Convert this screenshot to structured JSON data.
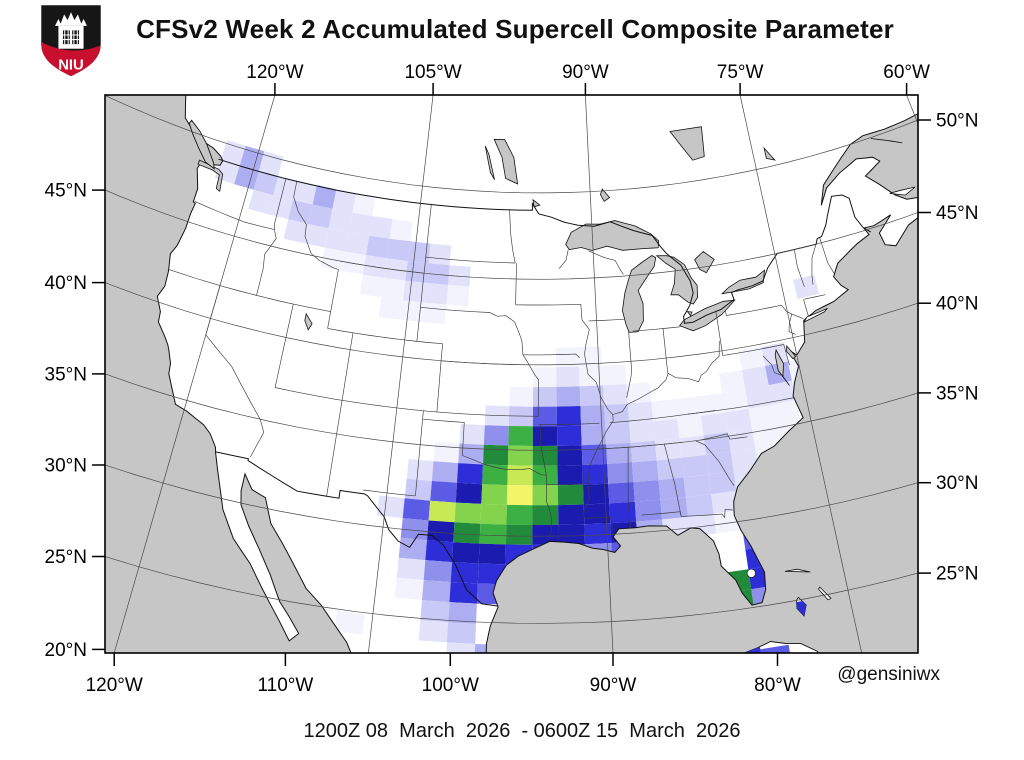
{
  "header": {
    "title": "CFSv2 Week 2 Accumulated Supercell Composite Parameter",
    "logo_text": "NIU"
  },
  "footer": {
    "caption": "1200Z 08  March  2026  - 0600Z 15  March  2026",
    "attribution": "@gensiniwx"
  },
  "axes": {
    "top": [
      {
        "lon": -120,
        "label": "120°W"
      },
      {
        "lon": -105,
        "label": "105°W"
      },
      {
        "lon": -90,
        "label": "90°W"
      },
      {
        "lon": -75,
        "label": "75°W"
      },
      {
        "lon": -60,
        "label": "60°W"
      }
    ],
    "bottom": [
      {
        "lon": -120,
        "label": "120°W"
      },
      {
        "lon": -110,
        "label": "110°W"
      },
      {
        "lon": -100,
        "label": "100°W"
      },
      {
        "lon": -90,
        "label": "90°W"
      },
      {
        "lon": -80,
        "label": "80°W"
      }
    ],
    "left": [
      {
        "lat": 45,
        "label": "45°N"
      },
      {
        "lat": 40,
        "label": "40°N"
      },
      {
        "lat": 35,
        "label": "35°N"
      },
      {
        "lat": 30,
        "label": "30°N"
      },
      {
        "lat": 25,
        "label": "25°N"
      },
      {
        "lat": 20,
        "label": "20°N"
      }
    ],
    "right": [
      {
        "lat": 50,
        "label": "50°N"
      },
      {
        "lat": 45,
        "label": "45°N"
      },
      {
        "lat": 40,
        "label": "40°N"
      },
      {
        "lat": 35,
        "label": "35°N"
      },
      {
        "lat": 30,
        "label": "30°N"
      },
      {
        "lat": 25,
        "label": "25°N"
      }
    ]
  },
  "colors": {
    "water": "#c6c6c6",
    "land": "#ffffff",
    "frame": "#000000",
    "grid_lines": "#4a4a4a",
    "state_lines": "#3c3c3c",
    "country_lines": "#111111",
    "niu_red": "#c8102e",
    "title_text": "#111111"
  },
  "chart_data": {
    "type": "heatmap",
    "title": "CFSv2 Week 2 Accumulated Supercell Composite Parameter",
    "valid_period": "1200Z 08 March 2026 - 0600Z 15 March 2026",
    "projection": {
      "type": "lambert_conformal_conic",
      "center_lon": -94.5,
      "cone_constant": 0.63
    },
    "extent": {
      "lon_min": -126.5,
      "lon_max": -60.0,
      "lat_min": 20.0,
      "lat_max": 50.6
    },
    "legend_position": "none",
    "grid": {
      "lon_start": -126.5,
      "lon_step": 1.75,
      "lat_start": 50.2,
      "lat_step": 1.15,
      "cols": 38,
      "rows": 26,
      "level_meaning": [
        "0 = no accumulated SCP",
        "1-8 = increasing SCP, white through blue to navy",
        "9-13 = highest SCP, dark green through yellow"
      ],
      "palette": {
        "1": "#f3f3fe",
        "2": "#e2e2fb",
        "3": "#c9c9f7",
        "4": "#adadf2",
        "5": "#8f8fec",
        "6": "#5b5be6",
        "7": "#2e2ed8",
        "8": "#1b1bb0",
        "9": "#228b3b",
        "a": "#3cb043",
        "b": "#83d34c",
        "c": "#c6e954",
        "d": "#f4f468"
      },
      "values": [
        "00242000000000000000000000000000000000",
        "00243224210000000000000000000000000000",
        "00002233222100000000000000000000000000",
        "00000022223332000000000000000000000000",
        "00000000112233200000000000000000000000",
        "00000000001122100000000000000000000000",
        "00000000000111000000000000000020000000",
        "00000000000000000000000000000000000000",
        "00000000000000000001100000000000000000",
        "00000000000000000012110000012000000000",
        "00000000000000000134321000124100000000",
        "00000000000000002367432111122100000000",
        "00000000000000025a87432212211000000000",
        "00000000000000149b98643223211000000000",
        "0000000000000247aca8754333210000000000",
        "0000000000000368bdb9865433200000000000",
        "00000000000026cbba98875432100000000000",
        "0000000000000589a988784221300000000000",
        "00000000000004788776560000600000000000",
        "00000000000002577600000000700000000000",
        "00000000000001476000000009700000000000",
        "00000000000000340000000009500000000000",
        "00000000000100230000000000070000000000",
        "00000000000000024000000067000000000000",
        "00000000000000006000000007600000000000",
        "00000000000000004000000003000000000000"
      ]
    }
  }
}
